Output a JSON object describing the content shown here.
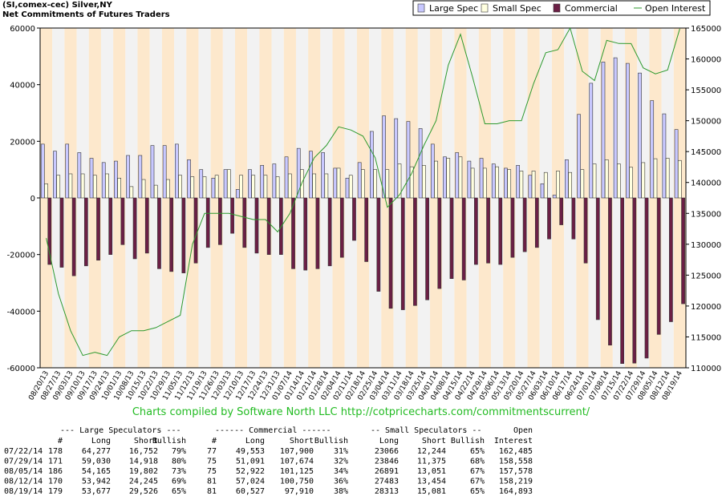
{
  "chart_data": {
    "type": "bar_line",
    "title": "(SI,comex-cec) Silver,NY",
    "subtitle": "Net Commitments of Futures Traders",
    "credit": "Charts compiled by Software North LLC  http://cotpricecharts.com/commitmentscurrent/",
    "categories": [
      "08/20/13",
      "08/27/13",
      "09/03/13",
      "09/10/13",
      "09/17/13",
      "09/24/13",
      "10/01/13",
      "10/08/13",
      "10/15/13",
      "10/22/13",
      "10/29/13",
      "11/05/13",
      "11/12/13",
      "11/19/13",
      "11/26/13",
      "12/03/13",
      "12/10/13",
      "12/17/13",
      "12/24/13",
      "12/31/13",
      "01/07/14",
      "01/14/14",
      "01/21/14",
      "01/28/14",
      "02/04/14",
      "02/11/14",
      "02/18/14",
      "02/25/14",
      "03/04/14",
      "03/11/14",
      "03/18/14",
      "03/25/14",
      "04/01/14",
      "04/08/14",
      "04/15/14",
      "04/22/14",
      "04/29/14",
      "05/06/14",
      "05/13/14",
      "05/20/14",
      "05/27/14",
      "06/03/14",
      "06/10/14",
      "06/17/14",
      "06/24/14",
      "07/01/14",
      "07/08/14",
      "07/15/14",
      "07/22/14",
      "07/29/14",
      "08/05/14",
      "08/12/14",
      "08/19/14"
    ],
    "series": [
      {
        "name": "Large Spec",
        "color": "#c8c8ff",
        "values": [
          19000,
          16500,
          19000,
          16000,
          14000,
          12500,
          13000,
          15000,
          15000,
          18500,
          18500,
          19000,
          13500,
          10000,
          7000,
          10000,
          3000,
          10000,
          11500,
          12000,
          14500,
          17500,
          16500,
          16000,
          10500,
          7000,
          12500,
          23500,
          29000,
          28000,
          27000,
          24500,
          19000,
          14500,
          16000,
          13000,
          14000,
          12000,
          10500,
          11500,
          8000,
          5000,
          1000,
          13500,
          29500,
          40500,
          48000,
          49500,
          47525,
          44112,
          34363,
          29697,
          24151
        ]
      },
      {
        "name": "Small Spec",
        "color": "#ffffe0",
        "values": [
          5000,
          8000,
          8500,
          8500,
          8000,
          8500,
          7000,
          4000,
          6500,
          4500,
          6500,
          8000,
          7500,
          7500,
          8000,
          10000,
          8000,
          8000,
          8000,
          7500,
          8500,
          10000,
          8500,
          8500,
          10500,
          8000,
          10000,
          10000,
          10000,
          12000,
          11000,
          11500,
          13000,
          14000,
          14500,
          10500,
          10500,
          11000,
          10000,
          9500,
          9500,
          9000,
          9500,
          9000,
          10000,
          12000,
          13500,
          12000,
          10822,
          12471,
          13840,
          14029,
          13232
        ]
      },
      {
        "name": "Commercial",
        "color": "#6b1f45",
        "values": [
          -23500,
          -24500,
          -27500,
          -24000,
          -22000,
          -20000,
          -16500,
          -21500,
          -19500,
          -25000,
          -26000,
          -26500,
          -23000,
          -17500,
          -16500,
          -12500,
          -17500,
          -19500,
          -20000,
          -20000,
          -25000,
          -25500,
          -25000,
          -24000,
          -21000,
          -15000,
          -22500,
          -33000,
          -39000,
          -39500,
          -38000,
          -36000,
          -32000,
          -28500,
          -29000,
          -23500,
          -23000,
          -23500,
          -21000,
          -19000,
          -17500,
          -14500,
          -9500,
          -14500,
          -23000,
          -43000,
          -52000,
          -58500,
          -58347,
          -56583,
          -48203,
          -43726,
          -37383
        ]
      },
      {
        "name": "Open Interest",
        "color": "#2e9a2e",
        "axis": "y2",
        "values": [
          131000,
          122000,
          116000,
          112000,
          112500,
          112000,
          115000,
          116000,
          116000,
          116500,
          117500,
          118500,
          130000,
          135000,
          135000,
          135000,
          134500,
          134000,
          134000,
          132000,
          135000,
          140000,
          144000,
          146000,
          149000,
          148500,
          147500,
          144000,
          136000,
          138000,
          141500,
          146000,
          150000,
          159000,
          164000,
          157000,
          149500,
          149500,
          150000,
          150000,
          156000,
          161000,
          161500,
          165000,
          158000,
          156500,
          163000,
          162500,
          162485,
          158558,
          157578,
          158219,
          164893
        ]
      }
    ],
    "ylim": [
      -60000,
      60000
    ],
    "yticks": [
      -60000,
      -40000,
      -20000,
      0,
      20000,
      40000,
      60000
    ],
    "y2lim": [
      110000,
      165000
    ],
    "y2ticks": [
      110000,
      115000,
      120000,
      125000,
      130000,
      135000,
      140000,
      145000,
      150000,
      155000,
      160000,
      165000
    ],
    "legend": "top-right"
  },
  "table": {
    "group_headers": [
      "--- Large Speculators ---",
      "------ Commercial ------",
      "-- Small Speculators --",
      "Open"
    ],
    "columns": [
      "#",
      "Long",
      "Short",
      "Bullish",
      "#",
      "Long",
      "Short",
      "Bullish",
      "Long",
      "Short",
      "Bullish",
      "Interest"
    ],
    "rows": [
      [
        "07/22/14",
        "178",
        "64,277",
        "16,752",
        "79%",
        "77",
        "49,553",
        "107,900",
        "31%",
        "23066",
        "12,244",
        "65%",
        "162,485"
      ],
      [
        "07/29/14",
        "171",
        "59,030",
        "14,918",
        "80%",
        "75",
        "51,091",
        "107,674",
        "32%",
        "23846",
        "11,375",
        "68%",
        "158,558"
      ],
      [
        "08/05/14",
        "186",
        "54,165",
        "19,802",
        "73%",
        "75",
        "52,922",
        "101,125",
        "34%",
        "26891",
        "13,051",
        "67%",
        "157,578"
      ],
      [
        "08/12/14",
        "170",
        "53,942",
        "24,245",
        "69%",
        "81",
        "57,024",
        "100,750",
        "36%",
        "27483",
        "13,454",
        "67%",
        "158,219"
      ],
      [
        "08/19/14",
        "179",
        "53,677",
        "29,526",
        "65%",
        "81",
        "60,527",
        "97,910",
        "38%",
        "28313",
        "15,081",
        "65%",
        "164,893"
      ]
    ]
  }
}
